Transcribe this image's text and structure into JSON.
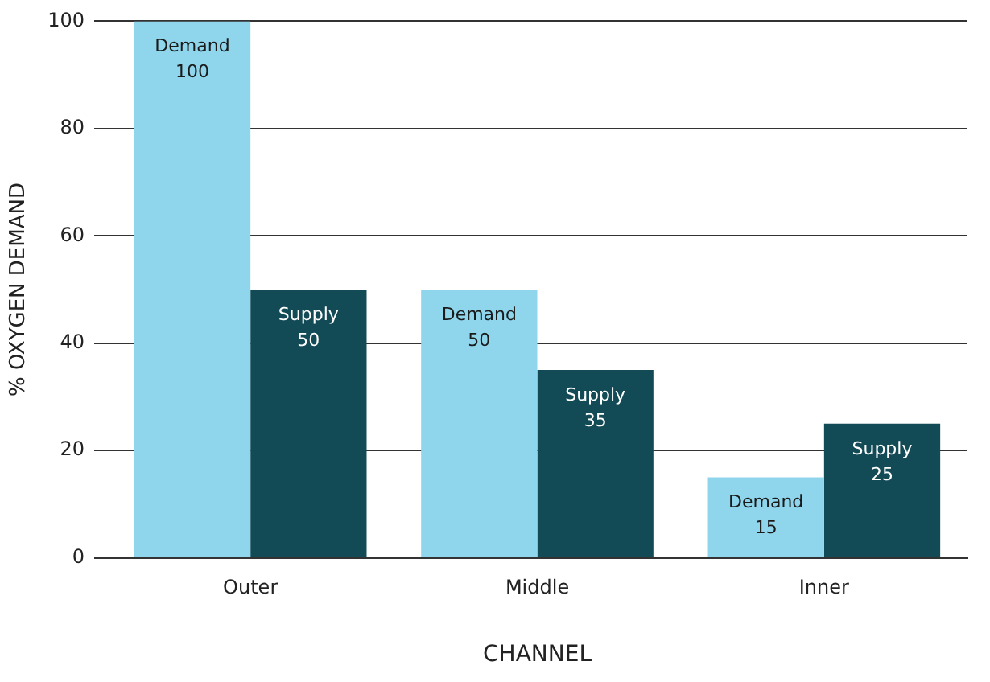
{
  "chart_data": {
    "type": "bar",
    "xlabel": "CHANNEL",
    "ylabel": "% OXYGEN DEMAND",
    "categories": [
      "Outer",
      "Middle",
      "Inner"
    ],
    "series": [
      {
        "name": "Demand",
        "color": "#8fd6ec",
        "values": [
          100,
          50,
          15
        ]
      },
      {
        "name": "Supply",
        "color": "#124a55",
        "values": [
          50,
          35,
          25
        ]
      }
    ],
    "ylim": [
      0,
      100
    ],
    "yticks": [
      0,
      20,
      40,
      60,
      80,
      100
    ],
    "grid": "y",
    "legend": false,
    "data_labels": true
  }
}
